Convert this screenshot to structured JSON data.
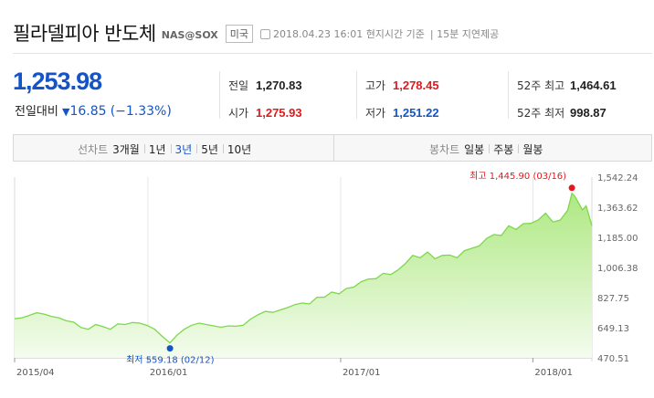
{
  "header": {
    "title": "필라델피아 반도체",
    "code": "NAS@SOX",
    "market": "미국",
    "as_of": "2018.04.23 16:01 현지시간 기준",
    "delay": "| 15분 지연제공"
  },
  "quote": {
    "price": "1,253.98",
    "change_label": "전일대비",
    "change_arrow": "▼",
    "change_value": "16.85",
    "change_pct": "(−1.33%)",
    "prev_close": {
      "label": "전일",
      "value": "1,270.83"
    },
    "open": {
      "label": "시가",
      "value": "1,275.93"
    },
    "high": {
      "label": "고가",
      "value": "1,278.45"
    },
    "low": {
      "label": "저가",
      "value": "1,251.22"
    },
    "wk52_high": {
      "label": "52주 최고",
      "value": "1,464.61"
    },
    "wk52_low": {
      "label": "52주 최저",
      "value": "998.87"
    }
  },
  "toolbar": {
    "line_label": "선차트",
    "line_periods": [
      "3개월",
      "1년",
      "3년",
      "5년",
      "10년"
    ],
    "line_selected": "3년",
    "candle_label": "봉차트",
    "candle_periods": [
      "일봉",
      "주봉",
      "월봉"
    ]
  },
  "colors": {
    "up": "#e2191c",
    "down": "#1354c8",
    "line": "#7ed84c",
    "fill_top": "#aee882",
    "fill_bottom": "#f4fcee"
  },
  "chart_data": {
    "type": "area",
    "x_ticks": [
      "2015/04",
      "2016/01",
      "2017/01",
      "2018/01"
    ],
    "y_ticks": [
      "1,542.24",
      "1,363.62",
      "1,185.00",
      "1,006.38",
      "827.75",
      "649.13",
      "470.51"
    ],
    "ylim": [
      470.51,
      1542.24
    ],
    "max_annotation": "최고 1,445.90 (03/16)",
    "min_annotation": "최저 559.18 (02/12)",
    "max_point": {
      "x": "2018-03-16",
      "y": 1445.9
    },
    "min_point": {
      "x": "2016-02-12",
      "y": 559.18
    },
    "grid": "vertical",
    "series": [
      {
        "x": [
          "2015-04-23",
          "2015-05-07",
          "2015-05-21",
          "2015-06-04",
          "2015-06-18",
          "2015-07-02",
          "2015-07-16",
          "2015-07-30",
          "2015-08-13",
          "2015-08-27",
          "2015-09-10",
          "2015-09-24",
          "2015-10-08",
          "2015-10-22",
          "2015-11-05",
          "2015-11-19",
          "2015-12-03",
          "2015-12-17",
          "2015-12-31",
          "2016-01-14",
          "2016-01-28",
          "2016-02-12",
          "2016-02-25",
          "2016-03-10",
          "2016-03-24",
          "2016-04-07",
          "2016-04-21",
          "2016-05-05",
          "2016-05-19",
          "2016-06-02",
          "2016-06-16",
          "2016-06-30",
          "2016-07-14",
          "2016-07-28",
          "2016-08-11",
          "2016-08-25",
          "2016-09-08",
          "2016-09-22",
          "2016-10-06",
          "2016-10-20",
          "2016-11-03",
          "2016-11-17",
          "2016-12-01",
          "2016-12-15",
          "2016-12-29",
          "2017-01-12",
          "2017-01-26",
          "2017-02-09",
          "2017-02-23",
          "2017-03-09",
          "2017-03-23",
          "2017-04-06",
          "2017-04-20",
          "2017-05-04",
          "2017-05-18",
          "2017-06-01",
          "2017-06-15",
          "2017-06-29",
          "2017-07-13",
          "2017-07-27",
          "2017-08-10",
          "2017-08-24",
          "2017-09-07",
          "2017-09-21",
          "2017-10-05",
          "2017-10-19",
          "2017-11-02",
          "2017-11-16",
          "2017-11-30",
          "2017-12-14",
          "2017-12-28",
          "2018-01-11",
          "2018-01-25",
          "2018-02-08",
          "2018-02-22",
          "2018-03-08",
          "2018-03-16",
          "2018-03-22",
          "2018-04-05",
          "2018-04-12",
          "2018-04-23"
        ],
        "y": [
          702,
          708,
          722,
          738,
          730,
          716,
          708,
          690,
          682,
          650,
          640,
          668,
          655,
          640,
          672,
          668,
          680,
          676,
          662,
          640,
          598,
          559.18,
          604,
          640,
          664,
          676,
          668,
          660,
          652,
          660,
          658,
          664,
          700,
          726,
          746,
          740,
          754,
          768,
          786,
          796,
          790,
          830,
          830,
          860,
          850,
          882,
          890,
          922,
          938,
          940,
          972,
          964,
          992,
          1030,
          1078,
          1064,
          1098,
          1058,
          1078,
          1080,
          1064,
          1106,
          1120,
          1134,
          1178,
          1202,
          1196,
          1254,
          1232,
          1266,
          1268,
          1288,
          1328,
          1276,
          1288,
          1346,
          1445.9,
          1428,
          1348,
          1372,
          1253.98
        ]
      }
    ]
  }
}
